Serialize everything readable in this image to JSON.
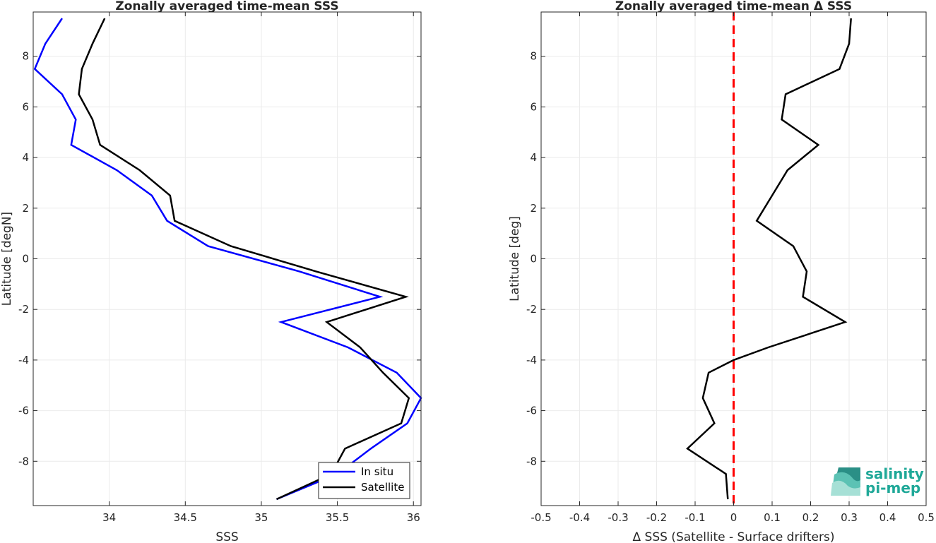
{
  "colors": {
    "insitu": "#0000ff",
    "satellite": "#000000",
    "zero_line": "#ff0000",
    "logo": "#1fa898"
  },
  "logo": {
    "line1": "salinity",
    "line2": "pi-mep"
  },
  "chart_data": [
    {
      "type": "line",
      "title": "Zonally averaged time-mean SSS",
      "xlabel": "SSS",
      "ylabel": "Latitude [degN]",
      "xlim": [
        33.5,
        36.05
      ],
      "ylim": [
        -9.75,
        9.75
      ],
      "xticks": [
        34,
        34.5,
        35,
        35.5,
        36
      ],
      "xtick_labels": [
        "34",
        "34.5",
        "35",
        "35.5",
        "36"
      ],
      "yticks": [
        -8,
        -6,
        -4,
        -2,
        0,
        2,
        4,
        6,
        8
      ],
      "ytick_labels": [
        "-8",
        "-6",
        "-4",
        "-2",
        "0",
        "2",
        "4",
        "6",
        "8"
      ],
      "grid": true,
      "legend": {
        "position": "bottom-right",
        "entries": [
          "In situ",
          "Satellite"
        ]
      },
      "series": [
        {
          "name": "In situ",
          "color": "#0000ff",
          "points": [
            [
              33.69,
              9.5
            ],
            [
              33.58,
              8.5
            ],
            [
              33.51,
              7.5
            ],
            [
              33.69,
              6.5
            ],
            [
              33.78,
              5.5
            ],
            [
              33.75,
              4.5
            ],
            [
              34.05,
              3.5
            ],
            [
              34.28,
              2.5
            ],
            [
              34.38,
              1.5
            ],
            [
              34.65,
              0.5
            ],
            [
              35.25,
              -0.5
            ],
            [
              35.78,
              -1.5
            ],
            [
              35.13,
              -2.5
            ],
            [
              35.57,
              -3.5
            ],
            [
              35.89,
              -4.5
            ],
            [
              36.05,
              -5.5
            ],
            [
              35.96,
              -6.5
            ],
            [
              35.72,
              -7.5
            ],
            [
              35.5,
              -8.5
            ],
            [
              35.1,
              -9.5
            ]
          ]
        },
        {
          "name": "Satellite",
          "color": "#000000",
          "points": [
            [
              33.97,
              9.5
            ],
            [
              33.89,
              8.5
            ],
            [
              33.82,
              7.5
            ],
            [
              33.8,
              6.5
            ],
            [
              33.89,
              5.5
            ],
            [
              33.94,
              4.5
            ],
            [
              34.2,
              3.5
            ],
            [
              34.4,
              2.5
            ],
            [
              34.43,
              1.5
            ],
            [
              34.8,
              0.5
            ],
            [
              35.36,
              -0.5
            ],
            [
              35.95,
              -1.5
            ],
            [
              35.43,
              -2.5
            ],
            [
              35.65,
              -3.5
            ],
            [
              35.8,
              -4.5
            ],
            [
              35.97,
              -5.5
            ],
            [
              35.92,
              -6.5
            ],
            [
              35.55,
              -7.5
            ],
            [
              35.46,
              -8.5
            ],
            [
              35.1,
              -9.5
            ]
          ]
        }
      ]
    },
    {
      "type": "line",
      "title": "Zonally averaged time-mean Δ SSS",
      "xlabel": "Δ SSS (Satellite - Surface drifters)",
      "ylabel": "Latitude [deg]",
      "xlim": [
        -0.5,
        0.5
      ],
      "ylim": [
        -9.75,
        9.75
      ],
      "xticks": [
        -0.5,
        -0.4,
        -0.3,
        -0.2,
        -0.1,
        0,
        0.1,
        0.2,
        0.3,
        0.4,
        0.5
      ],
      "xtick_labels": [
        "-0.5",
        "-0.4",
        "-0.3",
        "-0.2",
        "-0.1",
        "0",
        "0.1",
        "0.2",
        "0.3",
        "0.4",
        "0.5"
      ],
      "yticks": [
        -8,
        -6,
        -4,
        -2,
        0,
        2,
        4,
        6,
        8
      ],
      "ytick_labels": [
        "-8",
        "-6",
        "-4",
        "-2",
        "0",
        "2",
        "4",
        "6",
        "8"
      ],
      "grid": true,
      "reference_line": {
        "x": 0,
        "color": "#ff0000",
        "style": "dashed"
      },
      "series": [
        {
          "color": "#000000",
          "points": [
            [
              0.305,
              9.5
            ],
            [
              0.3,
              8.5
            ],
            [
              0.275,
              7.5
            ],
            [
              0.135,
              6.5
            ],
            [
              0.125,
              5.5
            ],
            [
              0.22,
              4.5
            ],
            [
              0.14,
              3.5
            ],
            [
              0.1,
              2.5
            ],
            [
              0.06,
              1.5
            ],
            [
              0.155,
              0.5
            ],
            [
              0.19,
              -0.5
            ],
            [
              0.18,
              -1.5
            ],
            [
              0.29,
              -2.5
            ],
            [
              0.09,
              -3.5
            ],
            [
              0,
              -4
            ],
            [
              -0.065,
              -4.5
            ],
            [
              -0.08,
              -5.5
            ],
            [
              -0.05,
              -6.5
            ],
            [
              -0.12,
              -7.5
            ],
            [
              -0.02,
              -8.5
            ],
            [
              -0.015,
              -9.5
            ]
          ]
        }
      ]
    }
  ]
}
